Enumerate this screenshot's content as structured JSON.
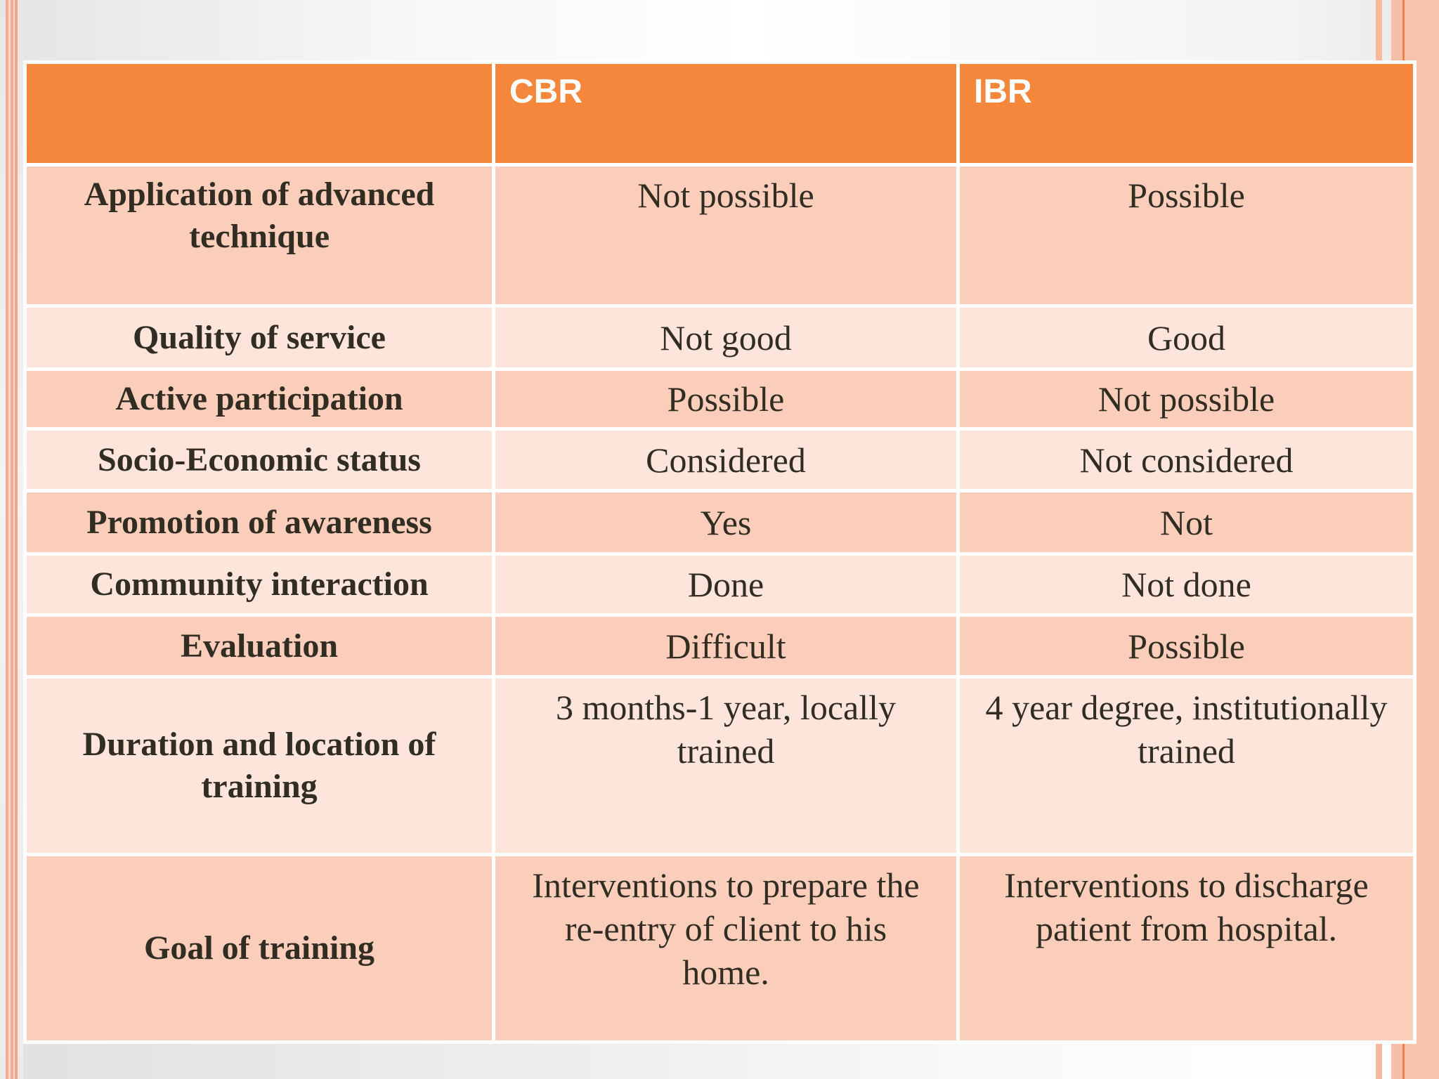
{
  "slide": {
    "type": "presentation-table-slide"
  },
  "colors": {
    "header_orange": "#f5873d",
    "row_dark_pink": "#fbcdbb",
    "row_light_pink": "#fde5dc",
    "gridline_white": "#ffffff",
    "text_dark": "#322d23",
    "header_text": "#ffffff",
    "edge_salmon_stripe": "#f2ad93",
    "edge_salmon_band": "#f7c3ac",
    "edge_orange_line": "#ee8046",
    "background_gray": "#e7e7e5"
  },
  "table": {
    "header": {
      "blank": "",
      "cbr": "CBR",
      "ibr": "IBR"
    },
    "rows": [
      {
        "label": "Application of advanced technique",
        "cbr": "Not possible",
        "ibr": "Possible"
      },
      {
        "label": "Quality of service",
        "cbr": "Not good",
        "ibr": "Good"
      },
      {
        "label": "Active participation",
        "cbr": "Possible",
        "ibr": "Not possible"
      },
      {
        "label": "Socio-Economic status",
        "cbr": "Considered",
        "ibr": "Not considered"
      },
      {
        "label": "Promotion of awareness",
        "cbr": "Yes",
        "ibr": "Not"
      },
      {
        "label": "Community interaction",
        "cbr": "Done",
        "ibr": "Not done"
      },
      {
        "label": "Evaluation",
        "cbr": "Difficult",
        "ibr": "Possible"
      },
      {
        "label": "Duration and location of training",
        "cbr": "3 months-1 year, locally trained",
        "ibr": "4 year degree, institutionally trained"
      },
      {
        "label": "Goal of training",
        "cbr": "Interventions to prepare the re-entry of client to his home.",
        "ibr": "Interventions to discharge patient from hospital."
      }
    ]
  },
  "chart_data": {
    "type": "table",
    "title": "",
    "columns": [
      "",
      "CBR",
      "IBR"
    ],
    "rows": [
      [
        "Application of advanced technique",
        "Not possible",
        "Possible"
      ],
      [
        "Quality of service",
        "Not good",
        "Good"
      ],
      [
        "Active participation",
        "Possible",
        "Not possible"
      ],
      [
        "Socio-Economic status",
        "Considered",
        "Not considered"
      ],
      [
        "Promotion of awareness",
        "Yes",
        "Not"
      ],
      [
        "Community interaction",
        "Done",
        "Not done"
      ],
      [
        "Evaluation",
        "Difficult",
        "Possible"
      ],
      [
        "Duration and location of training",
        "3 months-1 year, locally trained",
        "4 year degree, institutionally trained"
      ],
      [
        "Goal of training",
        "Interventions to prepare the re-entry of client to his home.",
        "Interventions to discharge patient from hospital."
      ]
    ]
  }
}
